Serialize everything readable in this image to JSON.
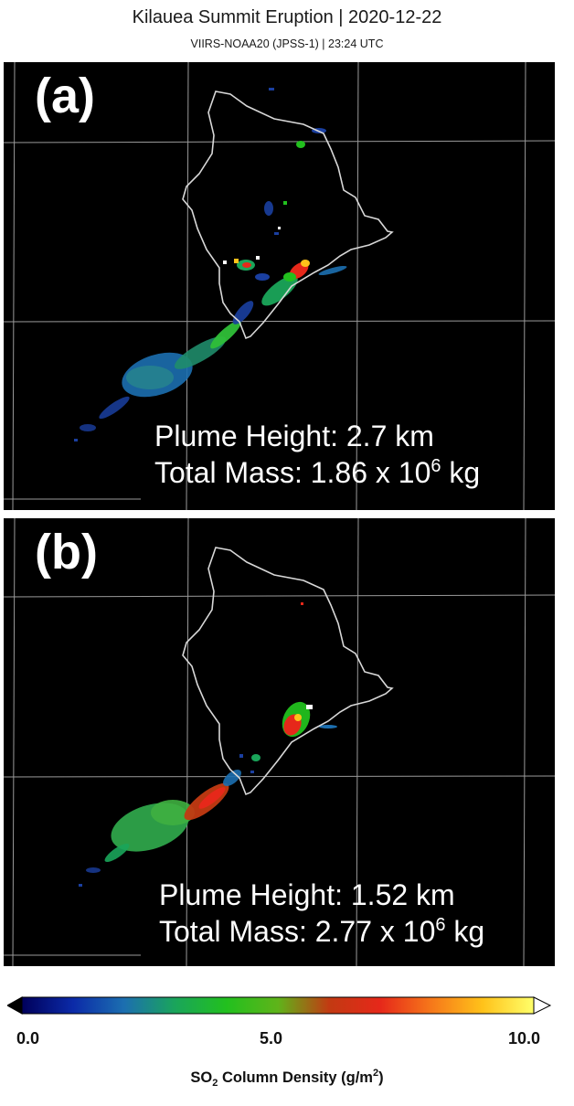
{
  "title": "Kilauea Summit Eruption | 2020-12-22",
  "subtitle": "VIIRS-NOAA20 (JPSS-1)  | 23:24 UTC",
  "panels": [
    {
      "label": "(a)",
      "plume_height_text": "Plume Height: 2.7 km",
      "mass_prefix": "Total Mass: 1.86 x 10",
      "mass_exponent": "6",
      "mass_unit": " kg"
    },
    {
      "label": "(b)",
      "plume_height_text": "Plume Height: 1.52 km",
      "mass_prefix": "Total Mass: 2.77 x 10",
      "mass_exponent": "6",
      "mass_unit": " kg"
    }
  ],
  "colorbar": {
    "min_label": "0.0",
    "mid_label": "5.0",
    "max_label": "10.0",
    "title_prefix": "SO",
    "title_sub": "2",
    "title_middle": " Column Density (g/m",
    "title_sup": "2",
    "title_suffix": ")",
    "range": [
      0,
      10
    ],
    "colors": [
      "#00005a",
      "#0b2aa8",
      "#1c6fb0",
      "#1aa55a",
      "#22c01e",
      "#5fb41a",
      "#c23a12",
      "#e6281a",
      "#f6781a",
      "#ffc21a",
      "#ffff6a"
    ],
    "under_color": "#000000",
    "over_color": "#ffffff"
  },
  "map": {
    "background": "#000000",
    "coastline_color": "#d8d8d8",
    "gridline_color": "#9a9a9a"
  }
}
